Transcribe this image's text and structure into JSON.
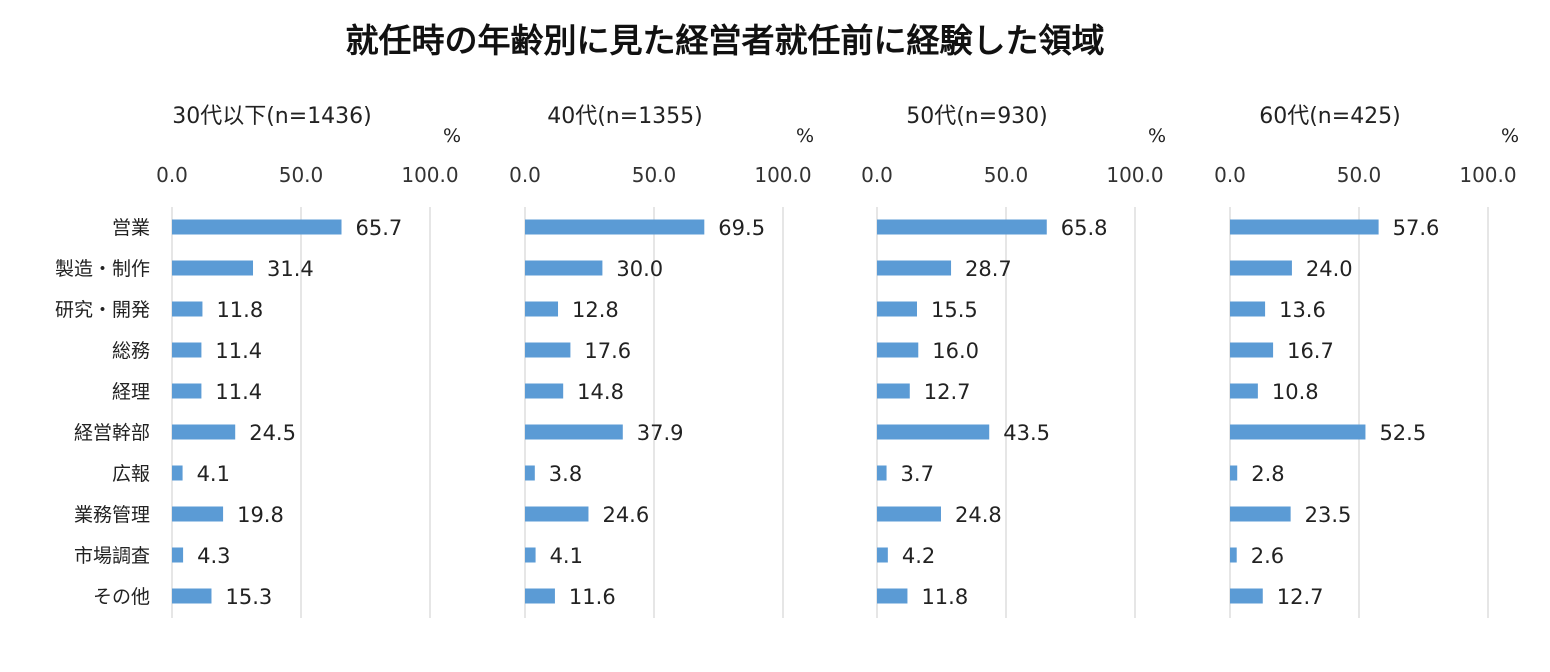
{
  "main_title": "就任時の年齢別に見た経営者就任前に経験した領域",
  "chart_data": {
    "type": "bar",
    "orientation": "horizontal",
    "title": "就任時の年齢別に見た経営者就任前に経験した領域",
    "unit": "%",
    "xlim": [
      0,
      100
    ],
    "ticks": [
      "0.0",
      "50.0",
      "100.0"
    ],
    "grid": true,
    "bar_color": "#5b9bd5",
    "categories": [
      "営業",
      "製造・制作",
      "研究・開発",
      "総務",
      "経理",
      "経営幹部",
      "広報",
      "業務管理",
      "市場調査",
      "その他"
    ],
    "panels": [
      {
        "title": "30代以下(n=1436)",
        "values": [
          65.7,
          31.4,
          11.8,
          11.4,
          11.4,
          24.5,
          4.1,
          19.8,
          4.3,
          15.3
        ]
      },
      {
        "title": "40代(n=1355)",
        "values": [
          69.5,
          30.0,
          12.8,
          17.6,
          14.8,
          37.9,
          3.8,
          24.6,
          4.1,
          11.6
        ]
      },
      {
        "title": "50代(n=930)",
        "values": [
          65.8,
          28.7,
          15.5,
          16.0,
          12.7,
          43.5,
          3.7,
          24.8,
          4.2,
          11.8
        ]
      },
      {
        "title": "60代(n=425)",
        "values": [
          57.6,
          24.0,
          13.6,
          16.7,
          10.8,
          52.5,
          2.8,
          23.5,
          2.6,
          12.7
        ]
      }
    ]
  }
}
